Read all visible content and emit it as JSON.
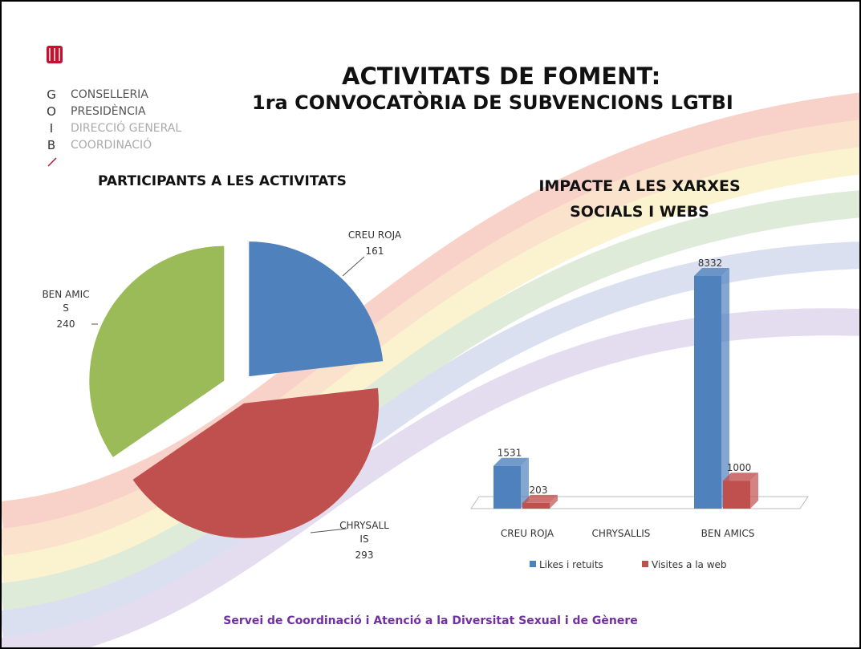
{
  "header": {
    "logo_letters": [
      "G",
      "O",
      "I",
      "B"
    ],
    "logo_lines": [
      "CONSELLERIA",
      "PRESIDÈNCIA",
      "DIRECCIÓ GENERAL",
      "COORDINACIÓ"
    ],
    "title": "ACTIVITATS DE FOMENT:",
    "subtitle": "1ra CONVOCATÒRIA DE SUBVENCIONS LGTBI"
  },
  "chart_data": [
    {
      "type": "pie",
      "title": "PARTICIPANTS A LES ACTIVITATS",
      "categories": [
        "CREU ROJA",
        "CHRYSALLIS",
        "BEN AMICS"
      ],
      "values": [
        161,
        293,
        240
      ],
      "colors": [
        "#4f81bd",
        "#c0504d",
        "#9bbb59"
      ]
    },
    {
      "type": "bar3d",
      "title": "IMPACTE A LES XARXES SOCIALS I WEBS",
      "categories": [
        "CREU ROJA",
        "CHRYSALLIS",
        "BEN AMICS"
      ],
      "series": [
        {
          "name": "Likes i retuits",
          "color": "#4f81bd",
          "values": [
            1531,
            null,
            8332
          ]
        },
        {
          "name": "Visites a la web",
          "color": "#c0504d",
          "values": [
            203,
            null,
            1000
          ]
        }
      ],
      "legend": "bottom"
    }
  ],
  "footer": "Servei de Coordinació i Atenció a la Diversitat Sexual i de Gènere"
}
